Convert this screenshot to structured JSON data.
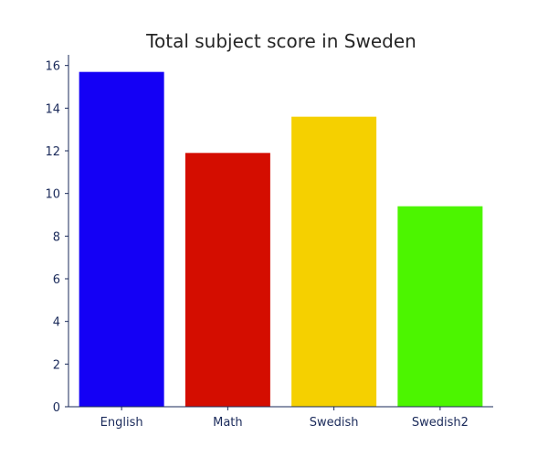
{
  "chart_data": {
    "type": "bar",
    "title": "Total subject score in Sweden",
    "xlabel": "",
    "ylabel": "",
    "categories": [
      "English",
      "Math",
      "Swedish",
      "Swedish2"
    ],
    "values": [
      15.7,
      11.9,
      13.6,
      9.4
    ],
    "colors": [
      "#1400f5",
      "#d40d00",
      "#f5d000",
      "#4cf500"
    ],
    "ylim": [
      0,
      16.5
    ],
    "yticks": [
      0,
      2,
      4,
      6,
      8,
      10,
      12,
      14,
      16
    ],
    "grid": false,
    "legend": "none"
  }
}
